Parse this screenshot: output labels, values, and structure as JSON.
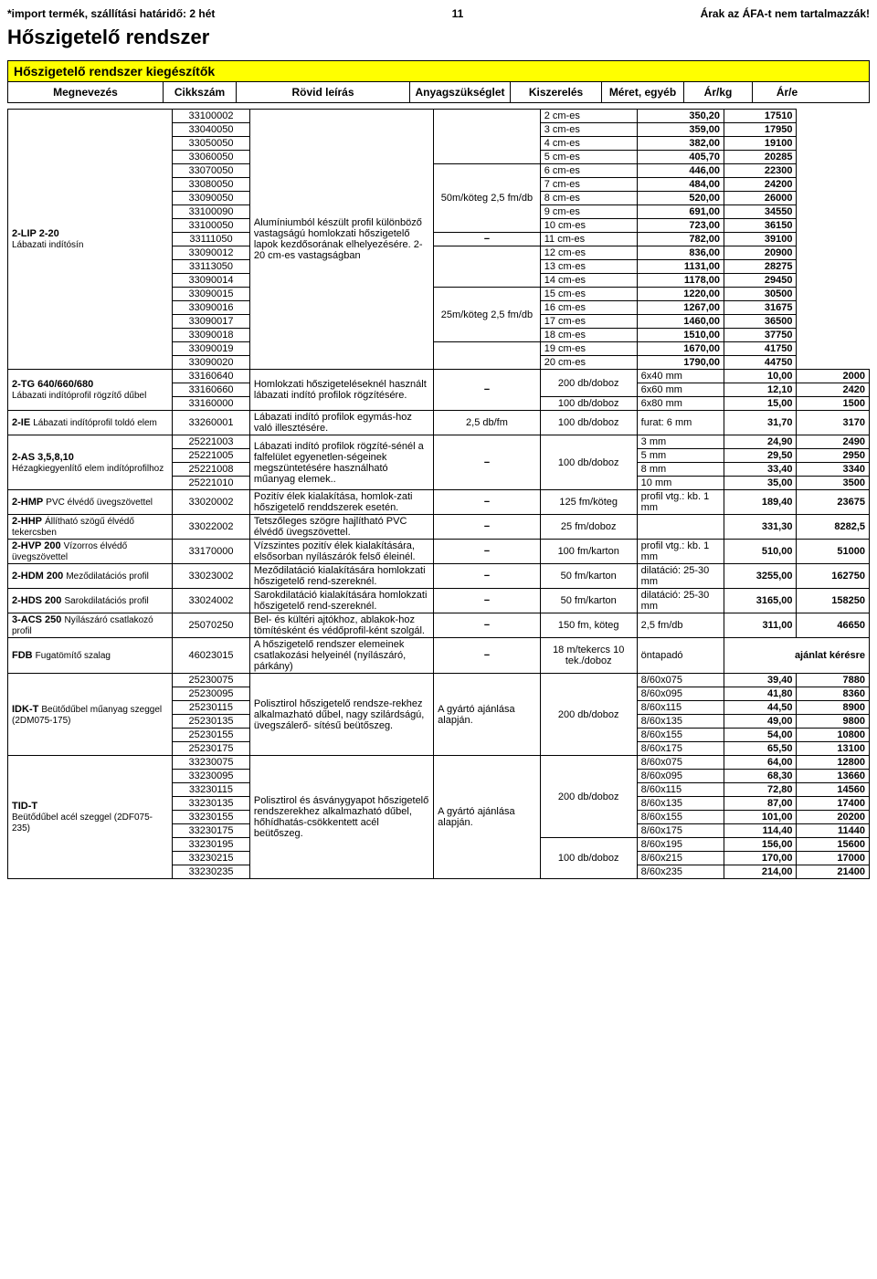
{
  "header": {
    "import_note": "*import termék, szállítási határidő: 2 hét",
    "page_number": "11",
    "vat_note": "Árak az ÁFA-t nem tartalmazzák!",
    "title": "Hőszigetelő rendszer",
    "subheader": "Hőszigetelő rendszer kiegészítők",
    "columns": [
      "Megnevezés",
      "Cikkszám",
      "Rövid leírás",
      "Anyagszükséglet",
      "Kiszerelés",
      "Méret, egyéb",
      "Ár/kg",
      "Ár/e"
    ]
  },
  "lip": {
    "name": "2-LIP 2-20",
    "sub": "Lábazati indítósín",
    "desc": "Alumíniumból készült profil különböző vastagságú homlokzati hőszigetelő lapok kezdősorának elhelyezésére.        2-20 cm-es vastagságban",
    "pack1": "50m/köteg 2,5 fm/db",
    "need_dash": "−",
    "pack2": "25m/köteg 2,5 fm/db",
    "rows": [
      [
        "33100002",
        "2 cm-es",
        "350,20",
        "17510"
      ],
      [
        "33040050",
        "3 cm-es",
        "359,00",
        "17950"
      ],
      [
        "33050050",
        "4 cm-es",
        "382,00",
        "19100"
      ],
      [
        "33060050",
        "5 cm-es",
        "405,70",
        "20285"
      ],
      [
        "33070050",
        "6 cm-es",
        "446,00",
        "22300"
      ],
      [
        "33080050",
        "7 cm-es",
        "484,00",
        "24200"
      ],
      [
        "33090050",
        "8 cm-es",
        "520,00",
        "26000"
      ],
      [
        "33100090",
        "9 cm-es",
        "691,00",
        "34550"
      ],
      [
        "33100050",
        "10 cm-es",
        "723,00",
        "36150"
      ],
      [
        "33111050",
        "11 cm-es",
        "782,00",
        "39100"
      ],
      [
        "33090012",
        "12 cm-es",
        "836,00",
        "20900"
      ],
      [
        "33113050",
        "13 cm-es",
        "1131,00",
        "28275"
      ],
      [
        "33090014",
        "14 cm-es",
        "1178,00",
        "29450"
      ],
      [
        "33090015",
        "15 cm-es",
        "1220,00",
        "30500"
      ],
      [
        "33090016",
        "16 cm-es",
        "1267,00",
        "31675"
      ],
      [
        "33090017",
        "17 cm-es",
        "1460,00",
        "36500"
      ],
      [
        "33090018",
        "18 cm-es",
        "1510,00",
        "37750"
      ],
      [
        "33090019",
        "19 cm-es",
        "1670,00",
        "41750"
      ],
      [
        "33090020",
        "20 cm-es",
        "1790,00",
        "44750"
      ]
    ]
  },
  "tg": {
    "name": "2-TG 640/660/680",
    "sub": "Lábazati indítóprofil rögzítő dűbel",
    "desc": "Homlokzati hőszigeteléseknél használt lábazati indító profilok rögzítésére.",
    "dash": "−",
    "rows": [
      [
        "33160640",
        "200 db/doboz",
        "6x40 mm",
        "10,00",
        "2000"
      ],
      [
        "33160660",
        "",
        "6x60 mm",
        "12,10",
        "2420"
      ],
      [
        "33160000",
        "100 db/doboz",
        "6x80 mm",
        "15,00",
        "1500"
      ]
    ]
  },
  "ie": {
    "name": "2-IE",
    "name2": "Lábazati indítóprofil toldó elem",
    "code": "33260001",
    "desc": "Lábazati indító profilok egymás-hoz való illesztésére.",
    "need": "2,5 db/fm",
    "pack": "100 db/doboz",
    "size": "furat: 6 mm",
    "p1": "31,70",
    "p2": "3170"
  },
  "as": {
    "name": "2-AS 3,5,8,10",
    "sub": "Hézagkiegyenlítő elem indítóprofilhoz",
    "desc": "Lábazati indító profilok rögzíté-sénél a falfelület egyenetlen-ségeinek megszüntetésére használható műanyag elemek..",
    "dash": "−",
    "pack": "100 db/doboz",
    "rows": [
      [
        "25221003",
        "3 mm",
        "24,90",
        "2490"
      ],
      [
        "25221005",
        "5 mm",
        "29,50",
        "2950"
      ],
      [
        "25221008",
        "8 mm",
        "33,40",
        "3340"
      ],
      [
        "25221010",
        "10 mm",
        "35,00",
        "3500"
      ]
    ]
  },
  "hmp": {
    "name": "2-HMP",
    "name2": "PVC élvédő üvegszövettel",
    "code": "33020002",
    "desc": "Pozitív élek kialakítása, homlok-zati hőszigetelő renddszerek esetén.",
    "dash": "−",
    "pack": "125 fm/köteg",
    "size": "profil vtg.: kb. 1 mm",
    "p1": "189,40",
    "p2": "23675"
  },
  "hhp": {
    "name": "2-HHP",
    "name2": "Állítható szögű élvédő tekercsben",
    "code": "33022002",
    "desc": "Tetszőleges szögre hajlítható PVC élvédő üvegszövettel.",
    "dash": "−",
    "pack": "25 fm/doboz",
    "p1": "331,30",
    "p2": "8282,5"
  },
  "hvp": {
    "name": "2-HVP 200",
    "name2": "Vízorros élvédő üvegszövettel",
    "code": "33170000",
    "desc": "Vízszintes pozitív élek kialakítására, elsősorban nyílászárók felső éleinél.",
    "dash": "−",
    "pack": "100 fm/karton",
    "size": "profil vtg.: kb. 1 mm",
    "p1": "510,00",
    "p2": "51000"
  },
  "hdm": {
    "name": "2-HDM 200",
    "name2": "Meződilatációs profil",
    "code": "33023002",
    "desc": "Meződilatáció kialakítására homlokzati hőszigetelő rend-szereknél.",
    "dash": "−",
    "pack": "50 fm/karton",
    "size": "dilatáció: 25-30 mm",
    "p1": "3255,00",
    "p2": "162750"
  },
  "hds": {
    "name": "2-HDS 200",
    "name2": "Sarokdilatációs profil",
    "code": "33024002",
    "desc": "Sarokdilatáció kialakítására homlokzati hőszigetelő rend-szereknél.",
    "dash": "−",
    "pack": "50 fm/karton",
    "size": "dilatáció: 25-30 mm",
    "p1": "3165,00",
    "p2": "158250"
  },
  "acs": {
    "name": "3-ACS 250",
    "name2": "Nyílászáró csatlakozó profil",
    "code": "25070250",
    "desc": "Bel- és kültéri ajtókhoz, ablakok-hoz tömítésként és védőprofil-ként szolgál.",
    "dash": "−",
    "pack": "150 fm, köteg",
    "size": "2,5 fm/db",
    "p1": "311,00",
    "p2": "46650"
  },
  "fdb": {
    "name": "FDB",
    "name2": "Fugatömítő szalag",
    "code": "46023015",
    "desc": "A hőszigetelő rendszer elemeinek csatlakozási helyeinél (nyílászáró, párkány)",
    "dash": "−",
    "pack": "18 m/tekercs 10 tek./doboz",
    "size": "öntapadó",
    "p": "ajánlat kérésre"
  },
  "idk": {
    "name": "IDK-T",
    "name2": "Beütődűbel műanyag szeggel (2DM075-175)",
    "desc": "Polisztirol hőszigetelő rendsze-rekhez alkalmazható dűbel, nagy szilárdságú, üvegszálerő- sítésű beütőszeg.",
    "need": "A gyártó ajánlása alapján.",
    "pack": "200 db/doboz",
    "rows": [
      [
        "25230075",
        "8/60x075",
        "39,40",
        "7880"
      ],
      [
        "25230095",
        "8/60x095",
        "41,80",
        "8360"
      ],
      [
        "25230115",
        "8/60x115",
        "44,50",
        "8900"
      ],
      [
        "25230135",
        "8/60x135",
        "49,00",
        "9800"
      ],
      [
        "25230155",
        "8/60x155",
        "54,00",
        "10800"
      ],
      [
        "25230175",
        "8/60x175",
        "65,50",
        "13100"
      ]
    ]
  },
  "tid": {
    "name": "TID-T",
    "name2": "Beütődűbel acél szeggel (2DF075-235)",
    "desc": "Polisztirol és ásványgyapot hőszigetelő rendszerekhez alkalmazható dűbel, hőhídhatás-csökkentett acél beütőszeg.",
    "need": "A gyártó ajánlása alapján.",
    "pack1": "200 db/doboz",
    "pack2": "100 db/doboz",
    "rows": [
      [
        "33230075",
        "8/60x075",
        "64,00",
        "12800"
      ],
      [
        "33230095",
        "8/60x095",
        "68,30",
        "13660"
      ],
      [
        "33230115",
        "8/60x115",
        "72,80",
        "14560"
      ],
      [
        "33230135",
        "8/60x135",
        "87,00",
        "17400"
      ],
      [
        "33230155",
        "8/60x155",
        "101,00",
        "20200"
      ],
      [
        "33230175",
        "8/60x175",
        "114,40",
        "11440"
      ],
      [
        "33230195",
        "8/60x195",
        "156,00",
        "15600"
      ],
      [
        "33230215",
        "8/60x215",
        "170,00",
        "17000"
      ],
      [
        "33230235",
        "8/60x235",
        "214,00",
        "21400"
      ]
    ]
  }
}
